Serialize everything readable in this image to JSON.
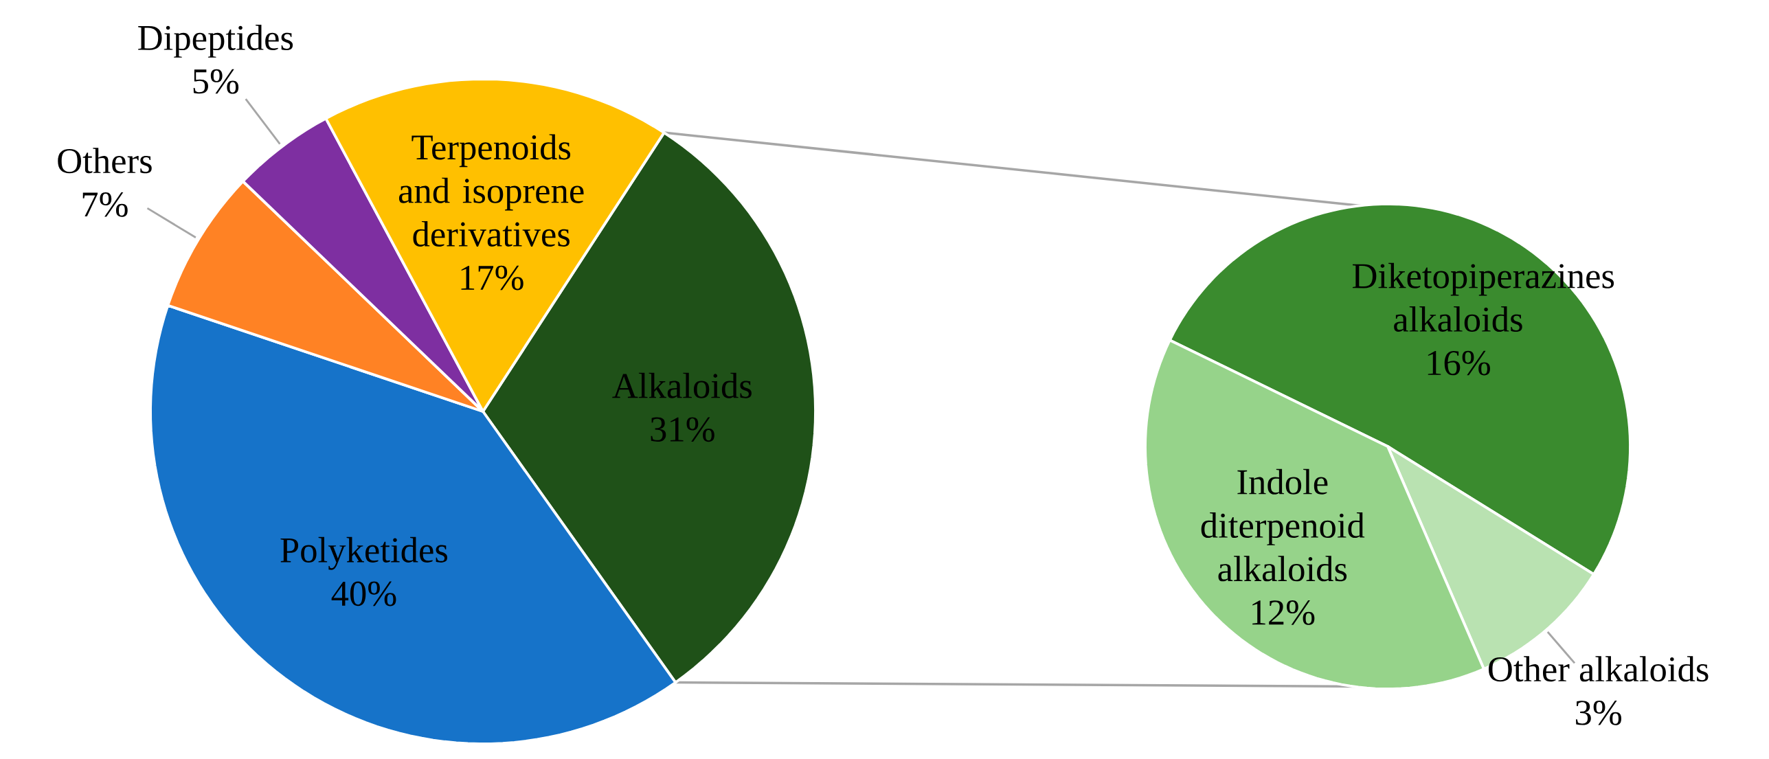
{
  "chart_data": [
    {
      "type": "pie",
      "categories": [
        "Alkaloids",
        "Polyketides",
        "Others",
        "Dipeptides",
        "Terpenoids and isoprene derivatives"
      ],
      "values": [
        31,
        40,
        7,
        5,
        17
      ],
      "colors": [
        "#1f5118",
        "#1673c9",
        "#ff8224",
        "#7e2fa1",
        "#ffc000"
      ],
      "value_labels": [
        "31%",
        "40%",
        "7%",
        "5%",
        "17%"
      ]
    },
    {
      "type": "pie",
      "categories": [
        "Diketopiperazines alkaloids",
        "Other alkaloids",
        "Indole diterpenoid alkaloids"
      ],
      "values": [
        16,
        3,
        12
      ],
      "colors": [
        "#3a8b2e",
        "#b9e2b1",
        "#96d38a"
      ],
      "value_labels": [
        "16%",
        "3%",
        "12%"
      ]
    }
  ]
}
